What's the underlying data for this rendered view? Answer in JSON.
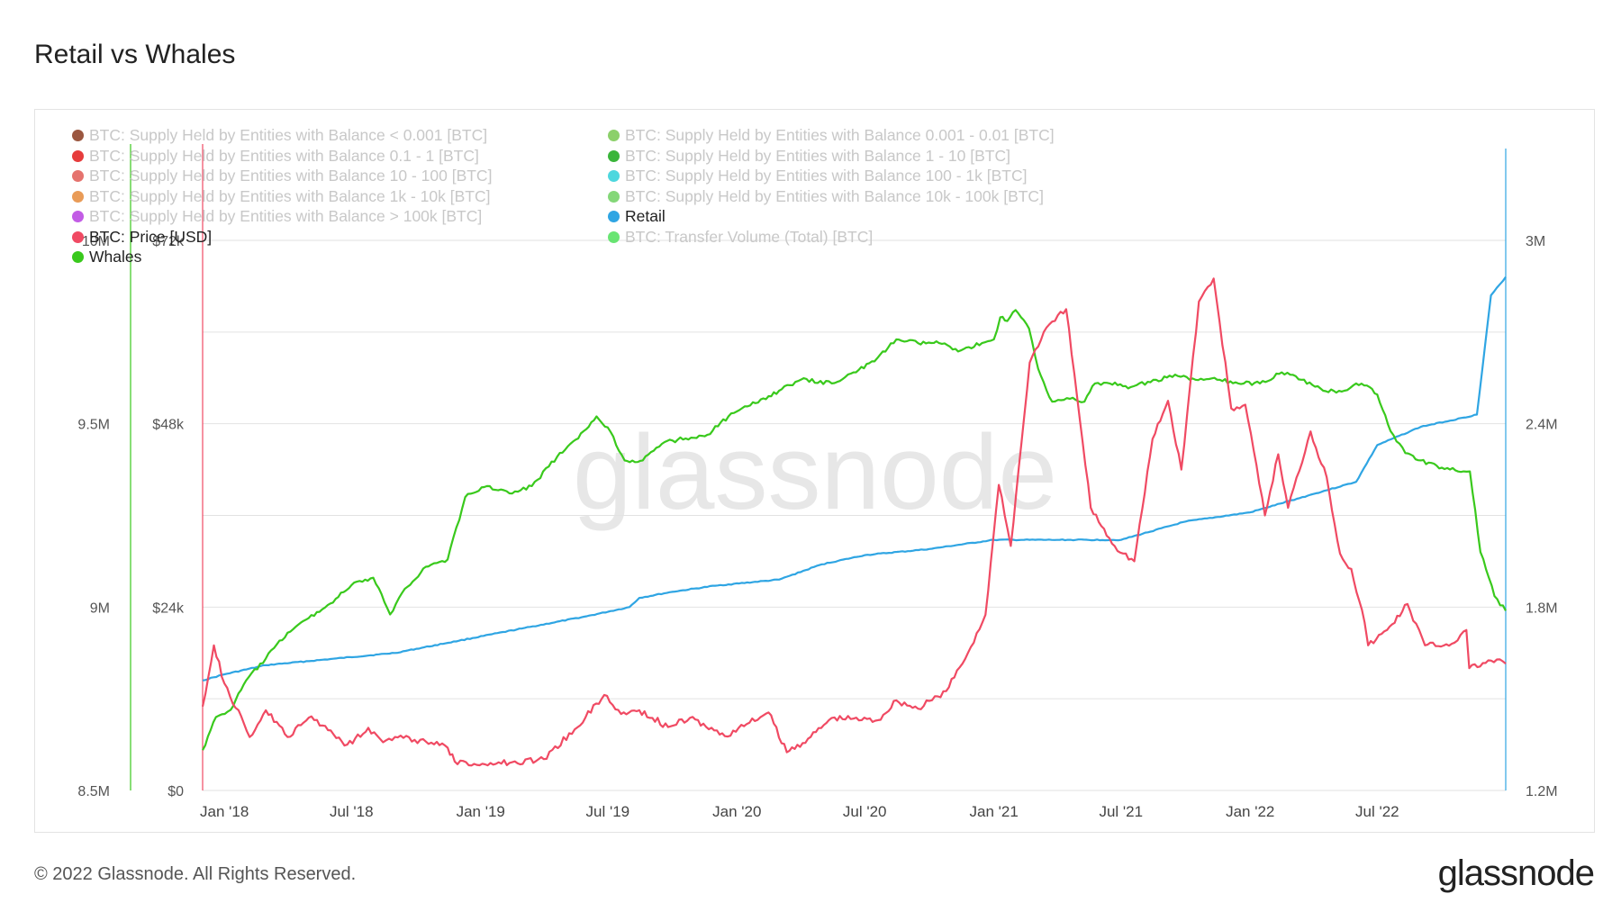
{
  "title": "Retail vs Whales",
  "footer": {
    "copyright": "© 2022 Glassnode. All Rights Reserved.",
    "logo": "glassnode"
  },
  "watermark": "glassnode",
  "colors": {
    "retail": "#2fa5e3",
    "whales": "#39c91c",
    "price": "#f04a63",
    "grid": "#e2e2e2"
  },
  "legend": [
    {
      "label": "BTC: Supply Held by Entities with Balance < 0.001 [BTC]",
      "color": "#8a3a1e",
      "active": false
    },
    {
      "label": "BTC: Supply Held by Entities with Balance 0.001 - 0.01 [BTC]",
      "color": "#78c850",
      "active": false
    },
    {
      "label": "BTC: Supply Held by Entities with Balance 0.1 - 1 [BTC]",
      "color": "#e21a1a",
      "active": false
    },
    {
      "label": "BTC: Supply Held by Entities with Balance 1 - 10 [BTC]",
      "color": "#17a817",
      "active": false
    },
    {
      "label": "BTC: Supply Held by Entities with Balance 10 - 100 [BTC]",
      "color": "#e05a55",
      "active": false
    },
    {
      "label": "BTC: Supply Held by Entities with Balance 100 - 1k [BTC]",
      "color": "#2fd0d8",
      "active": false
    },
    {
      "label": "BTC: Supply Held by Entities with Balance 1k - 10k [BTC]",
      "color": "#e58a3a",
      "active": false
    },
    {
      "label": "BTC: Supply Held by Entities with Balance 10k - 100k [BTC]",
      "color": "#6fd060",
      "active": false
    },
    {
      "label": "BTC: Supply Held by Entities with Balance > 100k [BTC]",
      "color": "#b740e0",
      "active": false
    },
    {
      "label": "Retail",
      "color": "#2fa5e3",
      "active": true
    },
    {
      "label": "BTC: Price [USD]",
      "color": "#f04a63",
      "active": true
    },
    {
      "label": "BTC: Transfer Volume (Total) [BTC]",
      "color": "#4fe05a",
      "active": false
    },
    {
      "label": "Whales",
      "color": "#39c91c",
      "active": true
    }
  ],
  "chart_data": {
    "type": "line",
    "x_tick_labels": [
      "Jan '18",
      "Jul '18",
      "Jan '19",
      "Jul '19",
      "Jan '20",
      "Jul '20",
      "Jan '21",
      "Jul '21",
      "Jan '22",
      "Jul '22"
    ],
    "x_range": [
      "2017-12-01",
      "2022-12-31"
    ],
    "axes": {
      "whales": {
        "ticks": [
          "8.5M",
          "9M",
          "9.5M",
          "10M"
        ],
        "range": [
          8500000,
          10000000
        ]
      },
      "price": {
        "ticks": [
          "$0",
          "$24k",
          "$48k",
          "$72k"
        ],
        "range": [
          0,
          72000
        ]
      },
      "retail": {
        "ticks": [
          "1.2M",
          "1.8M",
          "2.4M",
          "3M"
        ],
        "range": [
          1200000,
          3000000
        ]
      }
    },
    "grid": true,
    "legend_position": "top-left",
    "series": [
      {
        "name": "Whales",
        "axis": "whales",
        "points": [
          [
            "2017-12-01",
            8610000
          ],
          [
            "2017-12-20",
            8700000
          ],
          [
            "2018-01-10",
            8720000
          ],
          [
            "2018-02-01",
            8800000
          ],
          [
            "2018-03-01",
            8860000
          ],
          [
            "2018-04-01",
            8930000
          ],
          [
            "2018-05-01",
            8970000
          ],
          [
            "2018-06-01",
            9010000
          ],
          [
            "2018-07-01",
            9060000
          ],
          [
            "2018-08-01",
            9080000
          ],
          [
            "2018-08-25",
            8980000
          ],
          [
            "2018-09-15",
            9050000
          ],
          [
            "2018-10-15",
            9110000
          ],
          [
            "2018-11-15",
            9130000
          ],
          [
            "2018-12-10",
            9300000
          ],
          [
            "2019-01-10",
            9330000
          ],
          [
            "2019-02-15",
            9310000
          ],
          [
            "2019-03-15",
            9330000
          ],
          [
            "2019-04-20",
            9410000
          ],
          [
            "2019-05-20",
            9460000
          ],
          [
            "2019-06-15",
            9520000
          ],
          [
            "2019-07-01",
            9490000
          ],
          [
            "2019-07-25",
            9400000
          ],
          [
            "2019-08-20",
            9400000
          ],
          [
            "2019-09-20",
            9450000
          ],
          [
            "2019-10-20",
            9460000
          ],
          [
            "2019-11-20",
            9470000
          ],
          [
            "2019-12-20",
            9520000
          ],
          [
            "2020-01-20",
            9550000
          ],
          [
            "2020-03-01",
            9590000
          ],
          [
            "2020-04-01",
            9620000
          ],
          [
            "2020-05-15",
            9610000
          ],
          [
            "2020-06-15",
            9640000
          ],
          [
            "2020-07-15",
            9670000
          ],
          [
            "2020-08-15",
            9730000
          ],
          [
            "2020-09-15",
            9720000
          ],
          [
            "2020-10-15",
            9720000
          ],
          [
            "2020-11-15",
            9700000
          ],
          [
            "2020-12-15",
            9720000
          ],
          [
            "2021-01-01",
            9730000
          ],
          [
            "2021-01-10",
            9790000
          ],
          [
            "2021-01-20",
            9780000
          ],
          [
            "2021-02-01",
            9810000
          ],
          [
            "2021-02-20",
            9760000
          ],
          [
            "2021-03-05",
            9650000
          ],
          [
            "2021-03-25",
            9560000
          ],
          [
            "2021-04-15",
            9570000
          ],
          [
            "2021-05-10",
            9560000
          ],
          [
            "2021-05-25",
            9610000
          ],
          [
            "2021-06-15",
            9610000
          ],
          [
            "2021-07-15",
            9600000
          ],
          [
            "2021-08-20",
            9620000
          ],
          [
            "2021-09-20",
            9630000
          ],
          [
            "2021-10-15",
            9620000
          ],
          [
            "2021-11-15",
            9620000
          ],
          [
            "2021-12-15",
            9610000
          ],
          [
            "2022-01-15",
            9610000
          ],
          [
            "2022-02-15",
            9640000
          ],
          [
            "2022-03-15",
            9620000
          ],
          [
            "2022-04-15",
            9590000
          ],
          [
            "2022-05-15",
            9590000
          ],
          [
            "2022-06-01",
            9610000
          ],
          [
            "2022-06-20",
            9600000
          ],
          [
            "2022-07-01",
            9580000
          ],
          [
            "2022-07-20",
            9480000
          ],
          [
            "2022-08-10",
            9420000
          ],
          [
            "2022-09-01",
            9400000
          ],
          [
            "2022-10-01",
            9380000
          ],
          [
            "2022-11-01",
            9370000
          ],
          [
            "2022-11-10",
            9370000
          ],
          [
            "2022-11-25",
            9150000
          ],
          [
            "2022-12-15",
            9030000
          ],
          [
            "2022-12-31",
            8990000
          ]
        ]
      },
      {
        "name": "BTC: Price [USD]",
        "axis": "price",
        "points": [
          [
            "2017-12-01",
            11000
          ],
          [
            "2017-12-17",
            19000
          ],
          [
            "2018-01-01",
            14000
          ],
          [
            "2018-02-06",
            7000
          ],
          [
            "2018-03-01",
            10500
          ],
          [
            "2018-04-01",
            7000
          ],
          [
            "2018-05-05",
            9700
          ],
          [
            "2018-06-25",
            6000
          ],
          [
            "2018-07-25",
            8200
          ],
          [
            "2018-08-15",
            6300
          ],
          [
            "2018-09-01",
            7000
          ],
          [
            "2018-10-15",
            6400
          ],
          [
            "2018-11-15",
            5600
          ],
          [
            "2018-11-25",
            3800
          ],
          [
            "2018-12-15",
            3300
          ],
          [
            "2019-01-15",
            3600
          ],
          [
            "2019-02-15",
            3700
          ],
          [
            "2019-04-01",
            4100
          ],
          [
            "2019-05-15",
            8000
          ],
          [
            "2019-06-26",
            12500
          ],
          [
            "2019-07-20",
            10000
          ],
          [
            "2019-08-15",
            10500
          ],
          [
            "2019-09-25",
            8300
          ],
          [
            "2019-10-26",
            9500
          ],
          [
            "2019-12-15",
            7100
          ],
          [
            "2020-01-15",
            8700
          ],
          [
            "2020-02-15",
            10200
          ],
          [
            "2020-03-12",
            5000
          ],
          [
            "2020-04-15",
            7000
          ],
          [
            "2020-05-15",
            9500
          ],
          [
            "2020-06-15",
            9400
          ],
          [
            "2020-07-20",
            9200
          ],
          [
            "2020-08-15",
            11800
          ],
          [
            "2020-09-15",
            10700
          ],
          [
            "2020-10-25",
            13000
          ],
          [
            "2020-11-25",
            18000
          ],
          [
            "2020-12-20",
            23000
          ],
          [
            "2021-01-08",
            40000
          ],
          [
            "2021-01-25",
            32000
          ],
          [
            "2021-02-21",
            56000
          ],
          [
            "2021-03-13",
            60000
          ],
          [
            "2021-04-14",
            63000
          ],
          [
            "2021-05-19",
            37000
          ],
          [
            "2021-06-22",
            32000
          ],
          [
            "2021-07-20",
            30000
          ],
          [
            "2021-08-15",
            46000
          ],
          [
            "2021-09-06",
            51000
          ],
          [
            "2021-09-25",
            42000
          ],
          [
            "2021-10-20",
            64000
          ],
          [
            "2021-11-10",
            67000
          ],
          [
            "2021-12-05",
            50000
          ],
          [
            "2021-12-25",
            50500
          ],
          [
            "2022-01-22",
            36000
          ],
          [
            "2022-02-10",
            44000
          ],
          [
            "2022-02-24",
            37000
          ],
          [
            "2022-03-28",
            47000
          ],
          [
            "2022-04-20",
            41000
          ],
          [
            "2022-05-09",
            31000
          ],
          [
            "2022-05-25",
            29000
          ],
          [
            "2022-06-13",
            22000
          ],
          [
            "2022-06-18",
            19000
          ],
          [
            "2022-07-15",
            21000
          ],
          [
            "2022-08-13",
            24400
          ],
          [
            "2022-09-07",
            19000
          ],
          [
            "2022-10-15",
            19200
          ],
          [
            "2022-11-05",
            21000
          ],
          [
            "2022-11-09",
            16000
          ],
          [
            "2022-12-10",
            17000
          ],
          [
            "2022-12-31",
            16600
          ]
        ]
      },
      {
        "name": "Retail",
        "axis": "retail",
        "points": [
          [
            "2017-12-01",
            1560000
          ],
          [
            "2018-01-01",
            1580000
          ],
          [
            "2018-03-01",
            1610000
          ],
          [
            "2018-06-01",
            1630000
          ],
          [
            "2018-09-01",
            1650000
          ],
          [
            "2018-12-01",
            1690000
          ],
          [
            "2019-03-01",
            1730000
          ],
          [
            "2019-06-01",
            1770000
          ],
          [
            "2019-08-01",
            1800000
          ],
          [
            "2019-08-15",
            1830000
          ],
          [
            "2019-10-01",
            1850000
          ],
          [
            "2019-12-01",
            1870000
          ],
          [
            "2020-03-01",
            1890000
          ],
          [
            "2020-05-01",
            1940000
          ],
          [
            "2020-07-01",
            1970000
          ],
          [
            "2020-10-01",
            1990000
          ],
          [
            "2021-01-01",
            2020000
          ],
          [
            "2021-04-01",
            2020000
          ],
          [
            "2021-07-01",
            2020000
          ],
          [
            "2021-10-01",
            2080000
          ],
          [
            "2022-01-01",
            2110000
          ],
          [
            "2022-04-01",
            2170000
          ],
          [
            "2022-06-01",
            2210000
          ],
          [
            "2022-07-01",
            2330000
          ],
          [
            "2022-09-01",
            2390000
          ],
          [
            "2022-11-01",
            2420000
          ],
          [
            "2022-11-20",
            2430000
          ],
          [
            "2022-12-10",
            2820000
          ],
          [
            "2022-12-31",
            2880000
          ]
        ]
      }
    ]
  }
}
